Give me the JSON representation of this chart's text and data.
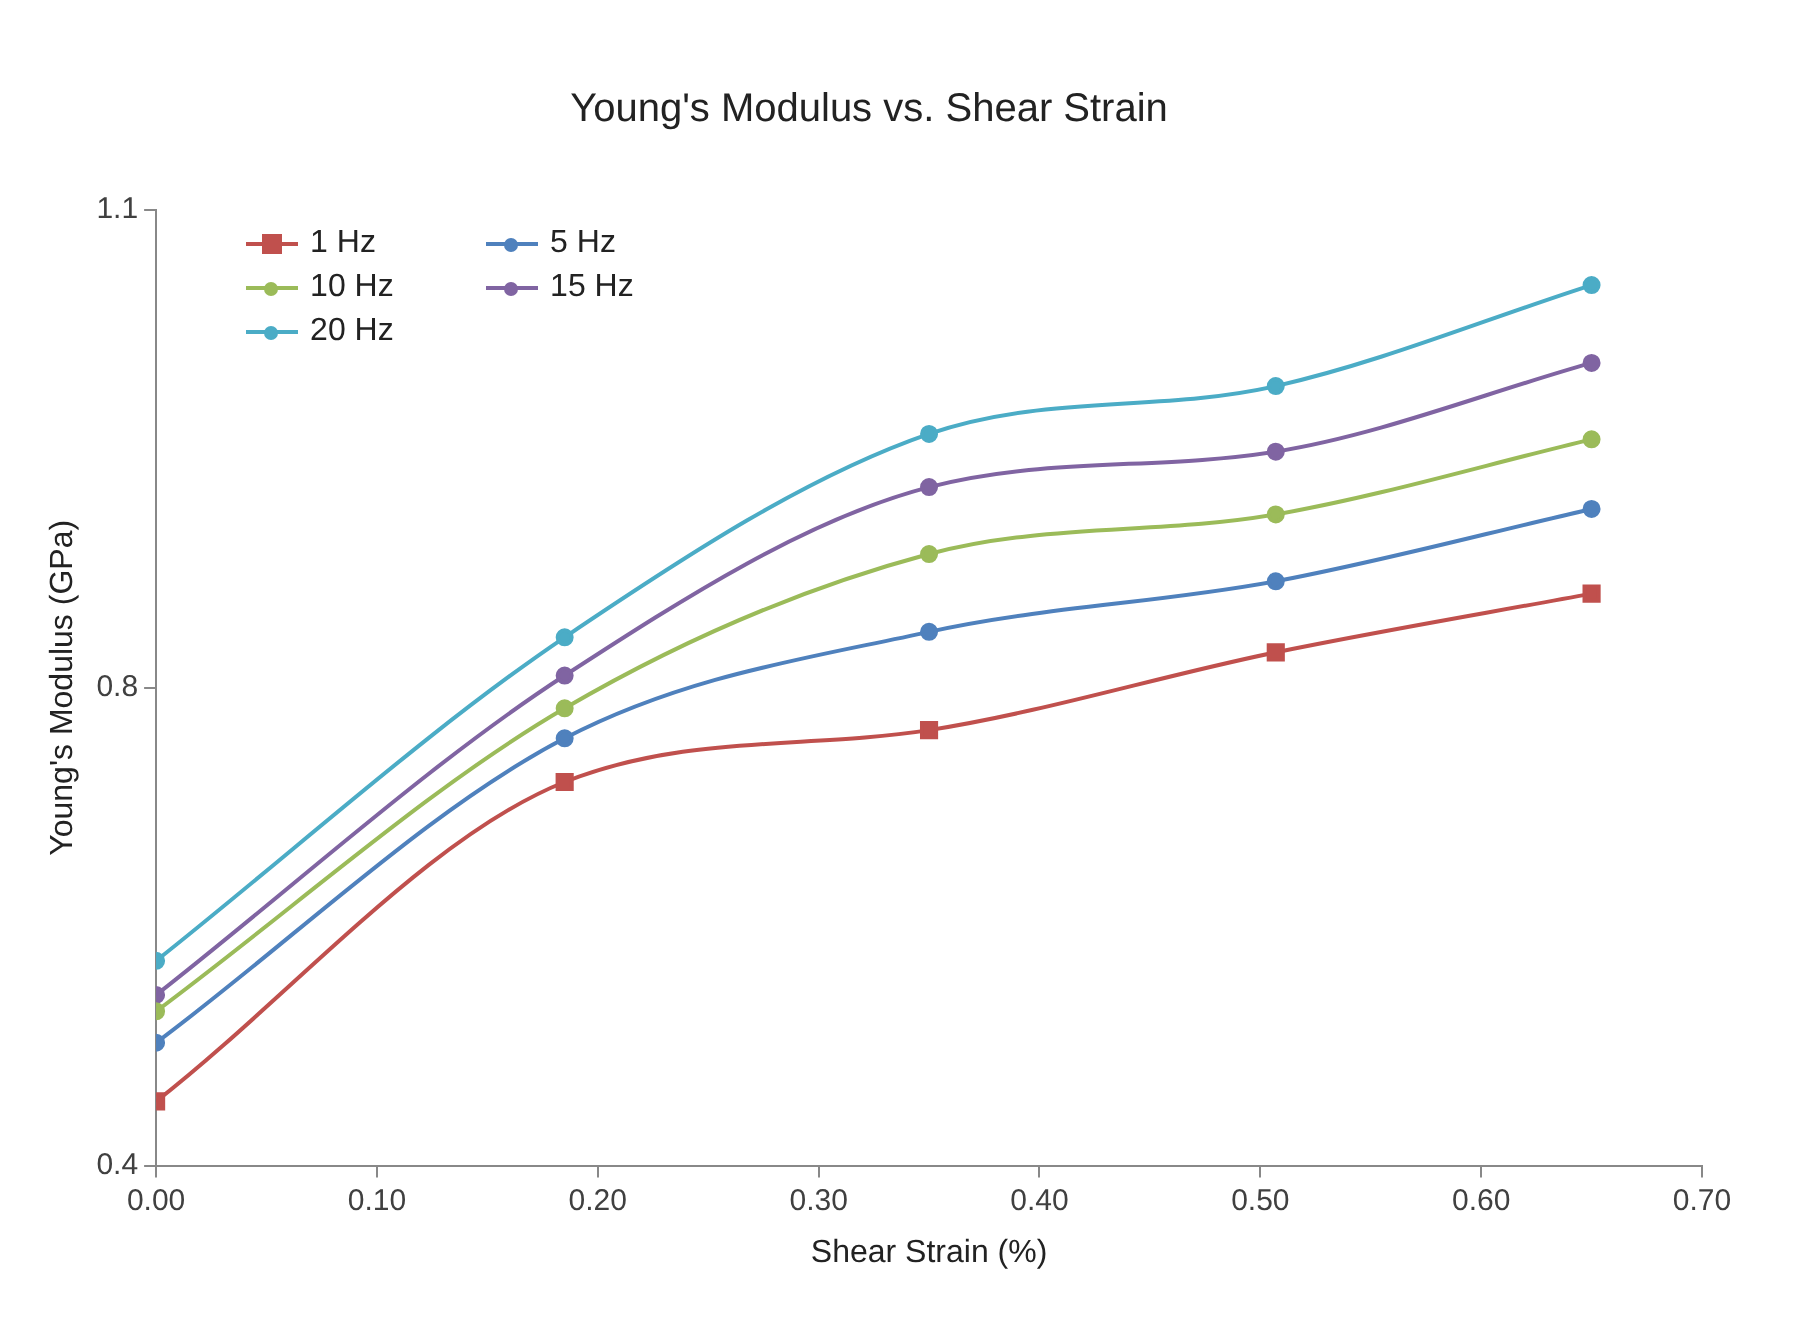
{
  "chart_data": {
    "type": "line",
    "title": "Young's Modulus vs. Shear Strain",
    "xlabel": "Shear Strain (%)",
    "ylabel": "Young's Modulus (GPa)",
    "x": [
      0,
      0.185,
      0.35,
      0.507,
      0.65
    ],
    "series": [
      {
        "name": "1 Hz",
        "color": "#c0504d",
        "marker": "square",
        "values": [
          0.447,
          0.681,
          0.719,
          0.776,
          0.819
        ]
      },
      {
        "name": "5 Hz",
        "color": "#4f81bd",
        "marker": "circle",
        "values": [
          0.49,
          0.713,
          0.791,
          0.828,
          0.881
        ]
      },
      {
        "name": "10 Hz",
        "color": "#9bbb59",
        "marker": "circle",
        "values": [
          0.513,
          0.735,
          0.848,
          0.877,
          0.932
        ]
      },
      {
        "name": "15 Hz",
        "color": "#8064a2",
        "marker": "circle",
        "values": [
          0.525,
          0.759,
          0.897,
          0.923,
          0.988
        ]
      },
      {
        "name": "20 Hz",
        "color": "#4bacc6",
        "marker": "circle",
        "values": [
          0.55,
          0.787,
          0.936,
          0.971,
          1.045
        ]
      }
    ],
    "xlim": [
      0,
      0.7
    ],
    "xticks": [
      {
        "value": 0,
        "label": "0.00"
      },
      {
        "value": 0.1,
        "label": "0.10"
      },
      {
        "value": 0.2,
        "label": "0.20"
      },
      {
        "value": 0.3,
        "label": "0.30"
      },
      {
        "value": 0.4,
        "label": "0.40"
      },
      {
        "value": 0.5,
        "label": "0.50"
      },
      {
        "value": 0.6,
        "label": "0.60"
      },
      {
        "value": 0.7,
        "label": "0.70"
      }
    ],
    "ylim": [
      0.4,
      1.1
    ],
    "yticks": [
      0.4,
      {
        "value": 0.75,
        "label": "0.8"
      },
      1.1
    ],
    "grid": false,
    "legend": "top left",
    "line_style": "solid"
  }
}
